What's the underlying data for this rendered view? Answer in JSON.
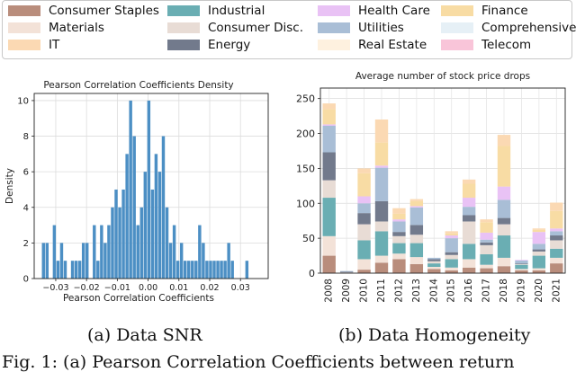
{
  "legend": {
    "items": [
      {
        "label": "Consumer Staples",
        "color": "#b98d7c"
      },
      {
        "label": "Industrial",
        "color": "#6aaeb3"
      },
      {
        "label": "Health Care",
        "color": "#e9c2f5"
      },
      {
        "label": "Finance",
        "color": "#f8dca4"
      },
      {
        "label": "Materials",
        "color": "#f3e2d8"
      },
      {
        "label": "Consumer Disc.",
        "color": "#e8dcd5"
      },
      {
        "label": "Utilities",
        "color": "#a9bed6"
      },
      {
        "label": "Comprehensive",
        "color": "#e6f0f6"
      },
      {
        "label": "IT",
        "color": "#fbd9b3"
      },
      {
        "label": "Energy",
        "color": "#727a8c"
      },
      {
        "label": "Real Estate",
        "color": "#fef1df"
      },
      {
        "label": "Telecom",
        "color": "#f9c5d9"
      }
    ]
  },
  "captions": {
    "a": "(a) Data SNR",
    "b": "(b) Data Homogeneity",
    "footer": "Fig. 1:  (a) Pearson Correlation Coefficients between return"
  },
  "chart_data": [
    {
      "type": "bar",
      "subtype": "histogram",
      "title": "Pearson Correlation Coefficients Density",
      "xlabel": "Pearson Correlation Coefficients",
      "ylabel": "Density",
      "xlim": [
        -0.037,
        0.039
      ],
      "ylim": [
        0,
        10.4
      ],
      "xticks": [
        -0.03,
        -0.02,
        -0.01,
        0.0,
        0.01,
        0.02,
        0.03
      ],
      "xtick_labels": [
        "−0.03",
        "−0.02",
        "−0.01",
        "0.00",
        "0.01",
        "0.02",
        "0.03"
      ],
      "yticks": [
        0,
        2,
        4,
        6,
        8,
        10
      ],
      "grid": true,
      "color": "#4c8fc4",
      "bin_start": -0.0345,
      "bin_width": 0.00118,
      "values": [
        2,
        2,
        0,
        3,
        1,
        2,
        1,
        0,
        1,
        1,
        1,
        2,
        2,
        0,
        3,
        1,
        3,
        2,
        3,
        4,
        5,
        4,
        5,
        7,
        10,
        8,
        3,
        4,
        6,
        10,
        5,
        7,
        6,
        8,
        4,
        2,
        3,
        1,
        2,
        1,
        1,
        1,
        1,
        3,
        2,
        1,
        1,
        1,
        1,
        1,
        1,
        2,
        1,
        0,
        0,
        0,
        1
      ]
    },
    {
      "type": "bar",
      "subtype": "stacked",
      "title": "Average number of stock price drops",
      "categories": [
        "2008",
        "2009",
        "2010",
        "2011",
        "2012",
        "2013",
        "2014",
        "2015",
        "2016",
        "2017",
        "2018",
        "2019",
        "2020",
        "2021"
      ],
      "ylim": [
        0,
        265
      ],
      "yticks": [
        0,
        50,
        100,
        150,
        200,
        250
      ],
      "grid": true,
      "series": [
        {
          "name": "Consumer Staples",
          "values": [
            25,
            0,
            5,
            15,
            20,
            13,
            6,
            4,
            8,
            7,
            10,
            4,
            4,
            14
          ]
        },
        {
          "name": "Materials",
          "values": [
            28,
            0,
            15,
            10,
            8,
            10,
            3,
            4,
            12,
            5,
            12,
            2,
            3,
            8
          ]
        },
        {
          "name": "Industrial",
          "values": [
            55,
            0,
            27,
            35,
            15,
            20,
            5,
            12,
            22,
            15,
            32,
            6,
            18,
            13
          ]
        },
        {
          "name": "Consumer Disc.",
          "values": [
            25,
            1,
            23,
            14,
            10,
            12,
            3,
            6,
            32,
            13,
            16,
            1,
            6,
            12
          ]
        },
        {
          "name": "Energy",
          "values": [
            40,
            1,
            16,
            29,
            6,
            14,
            3,
            4,
            9,
            4,
            9,
            1,
            3,
            7
          ]
        },
        {
          "name": "Utilities",
          "values": [
            38,
            1,
            14,
            48,
            15,
            25,
            2,
            20,
            12,
            4,
            26,
            4,
            8,
            6
          ]
        },
        {
          "name": "Health Care",
          "values": [
            2,
            0,
            10,
            3,
            3,
            2,
            0,
            4,
            13,
            10,
            19,
            1,
            17,
            4
          ]
        },
        {
          "name": "Finance",
          "values": [
            22,
            0,
            33,
            33,
            8,
            7,
            0,
            3,
            20,
            15,
            58,
            0,
            3,
            25
          ]
        },
        {
          "name": "IT",
          "values": [
            8,
            0,
            7,
            33,
            8,
            3,
            0,
            3,
            6,
            4,
            16,
            0,
            2,
            12
          ]
        }
      ]
    }
  ]
}
